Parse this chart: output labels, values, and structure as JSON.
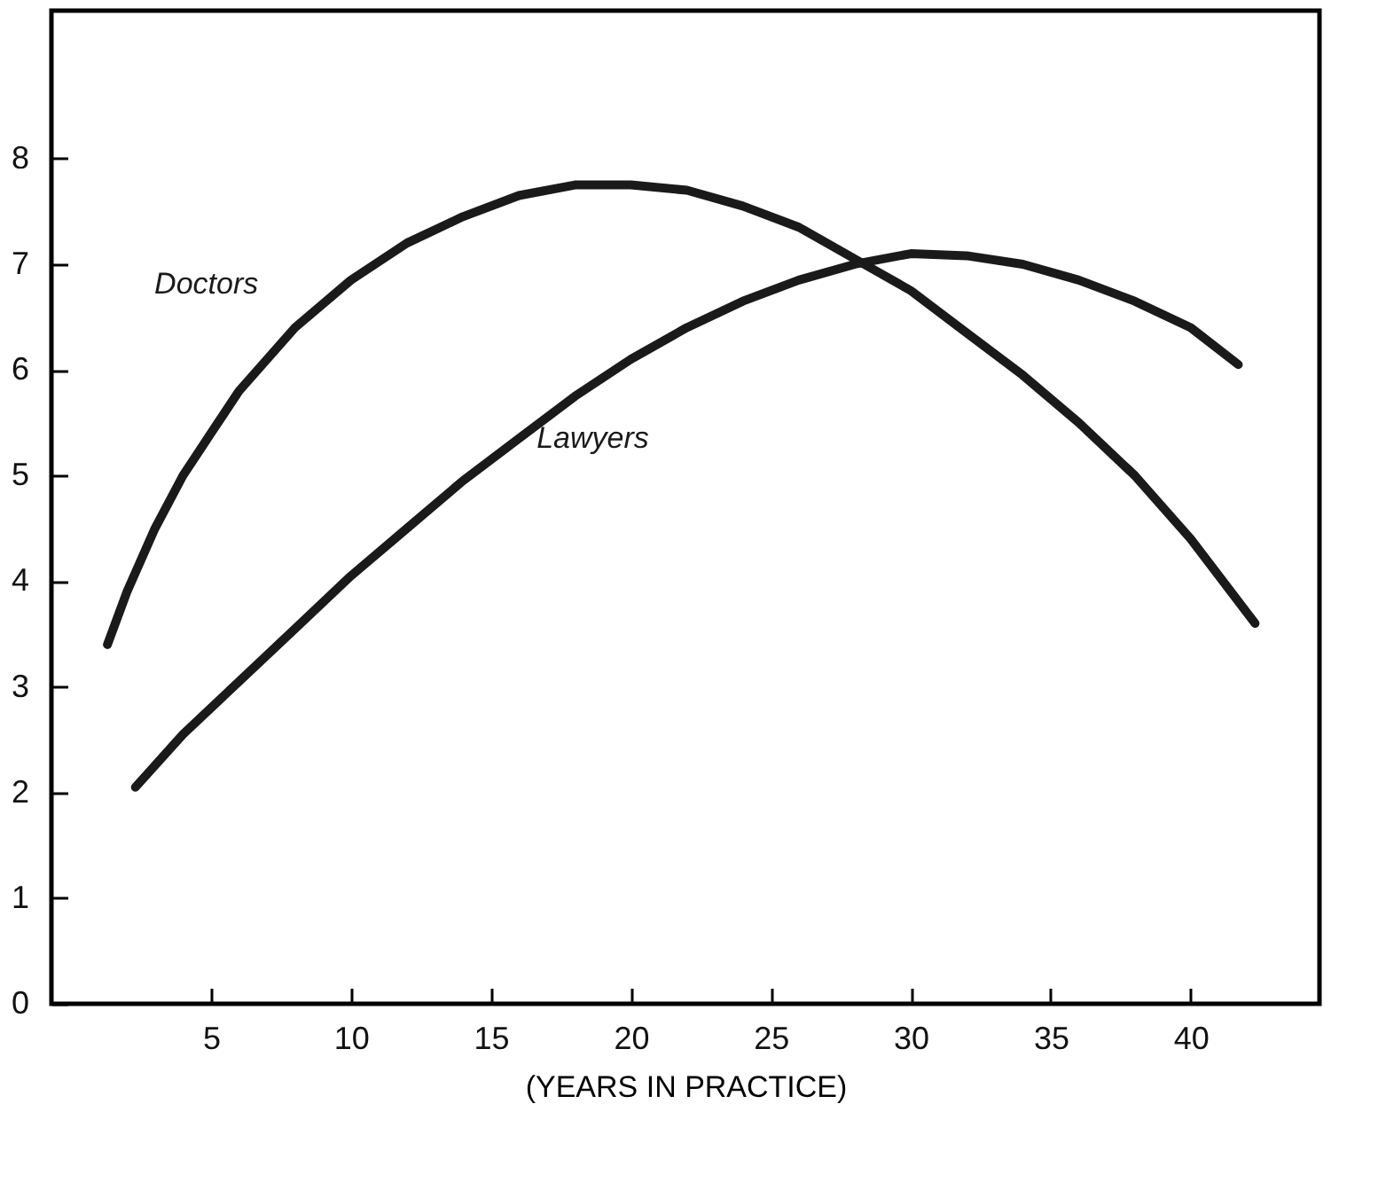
{
  "chart_data": {
    "type": "line",
    "xlabel": "(YEARS IN PRACTICE)",
    "xlim": [
      -0.7,
      44.6
    ],
    "xticks": [
      5,
      10,
      15,
      20,
      25,
      30,
      35,
      40
    ],
    "ylim": [
      0,
      9.4
    ],
    "yticks": [
      0,
      1,
      2,
      3,
      4,
      5,
      6,
      7,
      8
    ],
    "grid": false,
    "marker": "none",
    "line_style": "solid",
    "series": [
      {
        "name": "Doctors",
        "color": "#1a1a1a",
        "x": [
          1.3,
          2,
          3,
          4,
          5,
          6,
          8,
          10,
          12,
          14,
          16,
          18,
          20,
          22,
          24,
          26,
          28,
          30,
          32,
          34,
          36,
          38,
          40,
          42.3
        ],
        "values": [
          3.4,
          3.9,
          4.5,
          5.0,
          5.4,
          5.8,
          6.4,
          6.85,
          7.2,
          7.45,
          7.65,
          7.75,
          7.75,
          7.7,
          7.55,
          7.35,
          7.05,
          6.75,
          6.35,
          5.95,
          5.5,
          5.0,
          4.4,
          3.6
        ]
      },
      {
        "name": "Lawyers",
        "color": "#1a1a1a",
        "x": [
          2.3,
          4,
          6,
          8,
          10,
          12,
          14,
          16,
          18,
          20,
          22,
          24,
          26,
          28,
          30,
          32,
          34,
          36,
          38,
          40,
          41.7
        ],
        "values": [
          2.05,
          2.55,
          3.05,
          3.55,
          4.05,
          4.5,
          4.95,
          5.35,
          5.75,
          6.1,
          6.4,
          6.65,
          6.85,
          7.0,
          7.1,
          7.08,
          7.0,
          6.85,
          6.65,
          6.4,
          6.05
        ]
      }
    ]
  }
}
